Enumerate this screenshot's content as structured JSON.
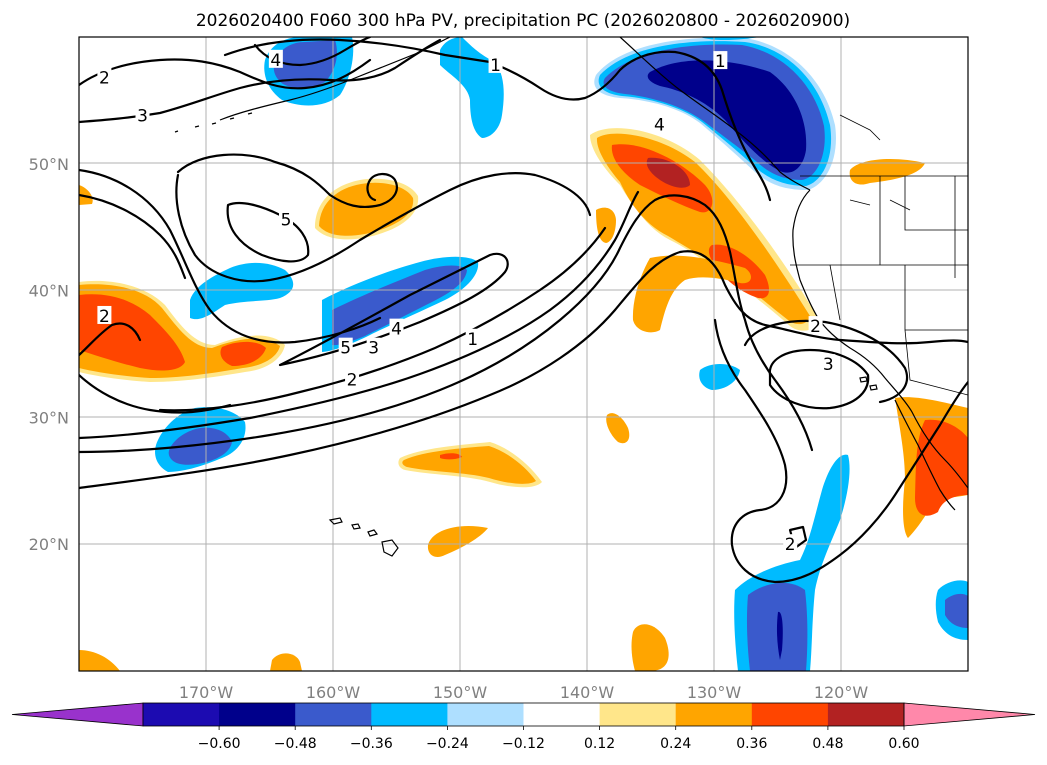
{
  "chart_data": {
    "type": "map",
    "title": "2026020400 F060 300 hPa PV, precipitation PC (2026020800 - 2026020900)",
    "extent": {
      "lon": [
        -180,
        -110
      ],
      "lat": [
        10,
        60
      ]
    },
    "lon_ticks": [
      {
        "lon": -170,
        "label": "170°W"
      },
      {
        "lon": -160,
        "label": "160°W"
      },
      {
        "lon": -150,
        "label": "150°W"
      },
      {
        "lon": -140,
        "label": "140°W"
      },
      {
        "lon": -130,
        "label": "130°W"
      },
      {
        "lon": -120,
        "label": "120°W"
      }
    ],
    "lat_ticks": [
      {
        "lat": 20,
        "label": "20°N"
      },
      {
        "lat": 30,
        "label": "30°N"
      },
      {
        "lat": 40,
        "label": "40°N"
      },
      {
        "lat": 50,
        "label": "50°N"
      }
    ],
    "colorbar": {
      "bounds": [
        -0.6,
        -0.48,
        -0.36,
        -0.24,
        -0.12,
        0.12,
        0.24,
        0.36,
        0.48,
        0.6
      ],
      "tick_labels": [
        "−0.60",
        "−0.48",
        "−0.36",
        "−0.24",
        "−0.12",
        "0.12",
        "0.24",
        "0.36",
        "0.48",
        "0.60"
      ],
      "colors": [
        "#1c0bb1",
        "#00008b",
        "#3a5acc",
        "#00bbff",
        "#aedfff",
        "#ffffff",
        "#ffe68a",
        "#ffa500",
        "#ff4500",
        "#b22222"
      ],
      "under": "#9932cc",
      "over": "#ff88aa",
      "extend": "both"
    },
    "pv_contour_labels": [
      {
        "text": "1",
        "lon": -147.2,
        "lat": 57.8
      },
      {
        "text": "2",
        "lon": -178.0,
        "lat": 56.8
      },
      {
        "text": "3",
        "lon": -175.0,
        "lat": 53.8
      },
      {
        "text": "4",
        "lon": -164.5,
        "lat": 58.2
      },
      {
        "text": "5",
        "lon": -163.7,
        "lat": 45.6
      },
      {
        "text": "1",
        "lon": -129.5,
        "lat": 58.1
      },
      {
        "text": "4",
        "lon": -134.3,
        "lat": 53.1
      },
      {
        "text": "2",
        "lon": -178.0,
        "lat": 38.0
      },
      {
        "text": "5",
        "lon": -159.0,
        "lat": 35.5
      },
      {
        "text": "4",
        "lon": -155.0,
        "lat": 37.0
      },
      {
        "text": "3",
        "lon": -156.8,
        "lat": 35.5
      },
      {
        "text": "2",
        "lon": -158.5,
        "lat": 33.0
      },
      {
        "text": "1",
        "lon": -149.0,
        "lat": 36.2
      },
      {
        "text": "2",
        "lon": -122.0,
        "lat": 37.2
      },
      {
        "text": "3",
        "lon": -121.0,
        "lat": 34.2
      },
      {
        "text": "2",
        "lon": -124.0,
        "lat": 20.0
      }
    ],
    "precip_regions": [
      {
        "name": "gulf of alaska negative",
        "value": -0.6,
        "lon": -128,
        "lat": 53
      },
      {
        "name": "aleutian negative",
        "value": -0.36,
        "lon": -163,
        "lat": 57
      },
      {
        "name": "north pacific negative",
        "value": -0.24,
        "lon": -147,
        "lat": 56
      },
      {
        "name": "central pacific band negative",
        "value": -0.36,
        "lon": -156,
        "lat": 38.5
      },
      {
        "name": "west pacific negative",
        "value": -0.36,
        "lon": -167,
        "lat": 28
      },
      {
        "name": "small negative",
        "value": -0.24,
        "lon": -169.5,
        "lat": 40
      },
      {
        "name": "tropical negative",
        "value": -0.48,
        "lon": -126,
        "lat": 14
      },
      {
        "name": "pacific northwest positive",
        "value": 0.48,
        "lon": -135,
        "lat": 49
      },
      {
        "name": "oregon-california positive",
        "value": 0.36,
        "lon": -130,
        "lat": 41
      },
      {
        "name": "western pacific positive",
        "value": 0.36,
        "lon": -175,
        "lat": 37
      },
      {
        "name": "mid pacific positive",
        "value": 0.24,
        "lon": -156.5,
        "lat": 46.5
      },
      {
        "name": "subtropical positive",
        "value": 0.24,
        "lon": -145,
        "lat": 26.5
      },
      {
        "name": "baja positive",
        "value": 0.36,
        "lon": -113.5,
        "lat": 27
      },
      {
        "name": "montana positive",
        "value": 0.24,
        "lon": -117,
        "lat": 49.5
      },
      {
        "name": "hawaii-east positive",
        "value": 0.24,
        "lon": -148,
        "lat": 20.5
      },
      {
        "name": "south pacific positive",
        "value": 0.24,
        "lon": -135,
        "lat": 12
      }
    ]
  }
}
